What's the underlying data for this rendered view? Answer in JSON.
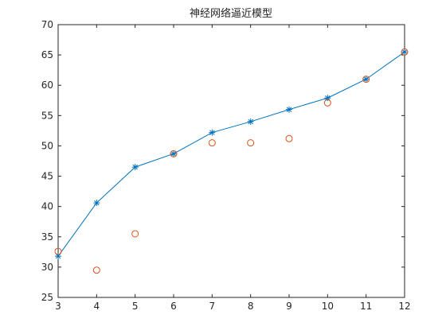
{
  "chart_data": {
    "type": "line",
    "title": "神经网络逼近模型",
    "xlabel": "",
    "ylabel": "",
    "xlim": [
      3,
      12
    ],
    "ylim": [
      25,
      70
    ],
    "xticks": [
      3,
      4,
      5,
      6,
      7,
      8,
      9,
      10,
      11,
      12
    ],
    "yticks": [
      25,
      30,
      35,
      40,
      45,
      50,
      55,
      60,
      65,
      70
    ],
    "grid": false,
    "legend": "none",
    "series": [
      {
        "style": "line-with-star-markers",
        "color": "#0072BD",
        "x": [
          3,
          4,
          5,
          6,
          7,
          8,
          9,
          10,
          11,
          12
        ],
        "y": [
          31.8,
          40.6,
          46.5,
          48.7,
          52.2,
          54.0,
          56.0,
          57.9,
          61.0,
          65.5
        ]
      },
      {
        "style": "circle-markers",
        "color": "#D95319",
        "x": [
          3,
          4,
          5,
          6,
          7,
          8,
          9,
          10,
          11,
          12
        ],
        "y": [
          32.6,
          29.5,
          35.5,
          48.7,
          50.5,
          50.5,
          51.2,
          57.1,
          61.0,
          65.5
        ]
      }
    ]
  }
}
